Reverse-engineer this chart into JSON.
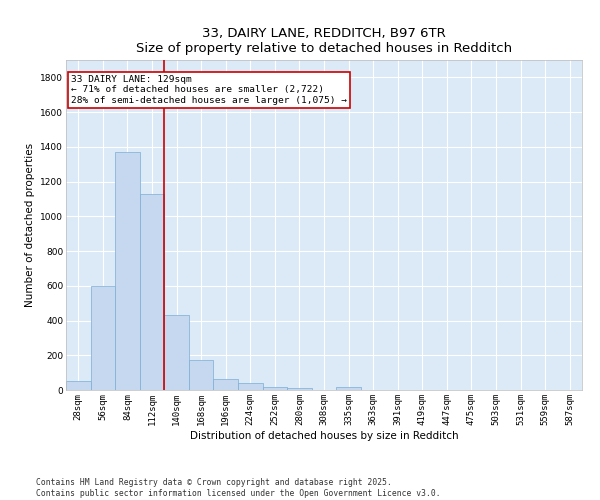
{
  "title_line1": "33, DAIRY LANE, REDDITCH, B97 6TR",
  "title_line2": "Size of property relative to detached houses in Redditch",
  "xlabel": "Distribution of detached houses by size in Redditch",
  "ylabel": "Number of detached properties",
  "bar_color": "#c5d8f0",
  "bar_edge_color": "#7aadd4",
  "background_color": "#dce9f7",
  "grid_color": "#ffffff",
  "categories": [
    "28sqm",
    "56sqm",
    "84sqm",
    "112sqm",
    "140sqm",
    "168sqm",
    "196sqm",
    "224sqm",
    "252sqm",
    "280sqm",
    "308sqm",
    "335sqm",
    "363sqm",
    "391sqm",
    "419sqm",
    "447sqm",
    "475sqm",
    "503sqm",
    "531sqm",
    "559sqm",
    "587sqm"
  ],
  "values": [
    50,
    600,
    1370,
    1130,
    430,
    175,
    65,
    40,
    15,
    10,
    0,
    15,
    0,
    0,
    0,
    0,
    0,
    0,
    0,
    0,
    0
  ],
  "ylim": [
    0,
    1900
  ],
  "yticks": [
    0,
    200,
    400,
    600,
    800,
    1000,
    1200,
    1400,
    1600,
    1800
  ],
  "annotation_line1": "33 DAIRY LANE: 129sqm",
  "annotation_line2": "← 71% of detached houses are smaller (2,722)",
  "annotation_line3": "28% of semi-detached houses are larger (1,075) →",
  "annotation_box_color": "#ffffff",
  "annotation_box_edge": "#cc0000",
  "red_line_color": "#cc0000",
  "footer_line1": "Contains HM Land Registry data © Crown copyright and database right 2025.",
  "footer_line2": "Contains public sector information licensed under the Open Government Licence v3.0.",
  "title_fontsize": 9.5,
  "axis_label_fontsize": 7.5,
  "tick_fontsize": 6.5,
  "annotation_fontsize": 6.8,
  "footer_fontsize": 5.8,
  "ylabel_fontsize": 7.5
}
